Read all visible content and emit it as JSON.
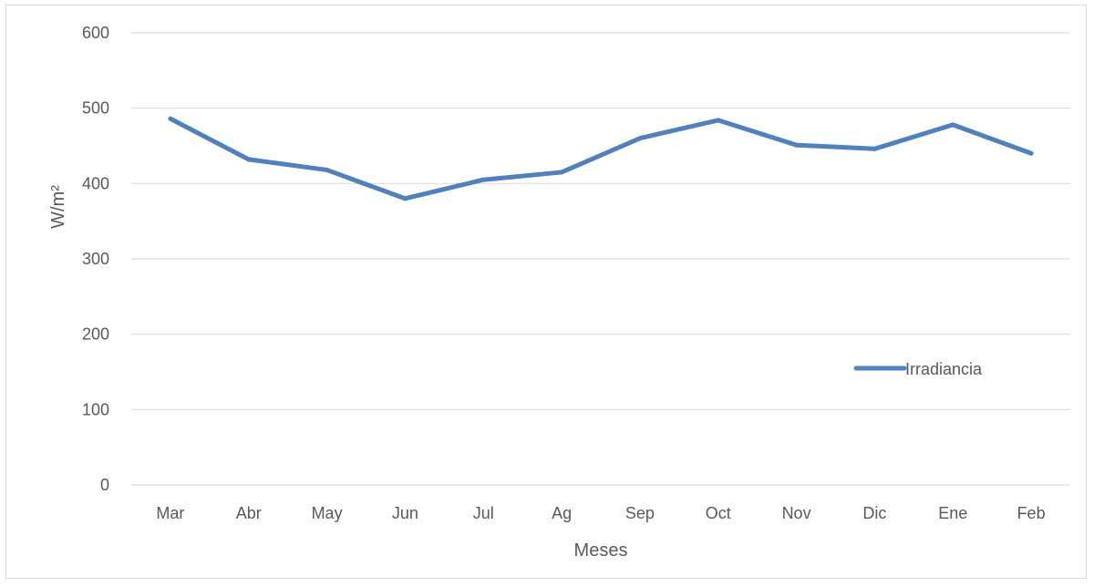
{
  "chart_data": {
    "type": "line",
    "categories": [
      "Mar",
      "Abr",
      "May",
      "Jun",
      "Jul",
      "Ag",
      "Sep",
      "Oct",
      "Nov",
      "Dic",
      "Ene",
      "Feb"
    ],
    "series": [
      {
        "name": "Irradiancia",
        "values": [
          486,
          432,
          418,
          380,
          405,
          415,
          460,
          484,
          451,
          446,
          478,
          440
        ],
        "color": "#4f81bd"
      }
    ],
    "xlabel": "Meses",
    "ylabel": "W/m²",
    "ylim": [
      0,
      600
    ],
    "yticks": [
      0,
      100,
      200,
      300,
      400,
      500,
      600
    ],
    "grid": "horizontal",
    "legend_position": "right"
  }
}
